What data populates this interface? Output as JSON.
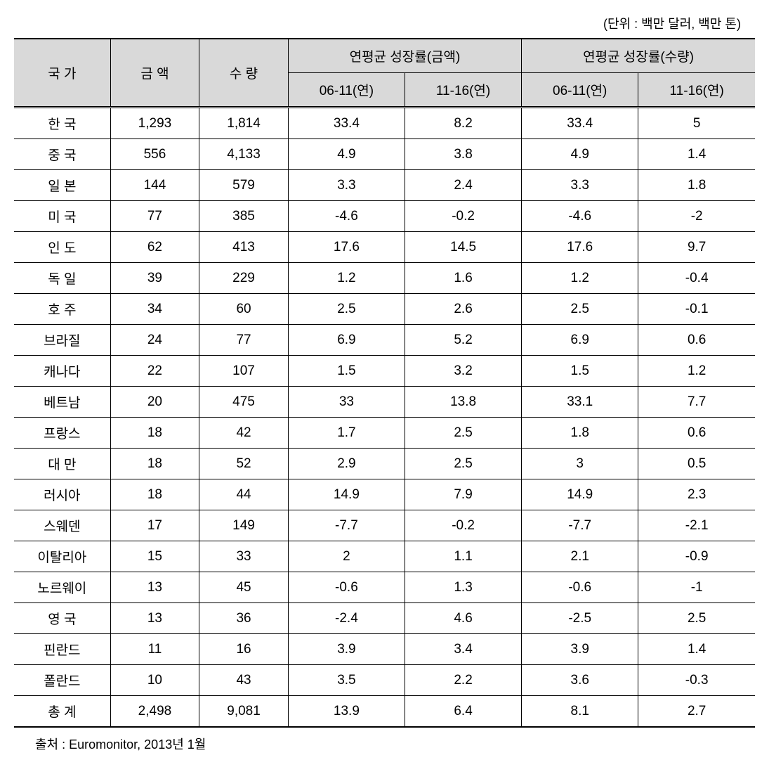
{
  "unit_label": "(단위 : 백만 달러, 백만 톤)",
  "headers": {
    "country": "국 가",
    "amount": "금 액",
    "quantity": "수 량",
    "growth_amount": "연평균 성장률(금액)",
    "growth_qty": "연평균 성장률(수량)",
    "period1": "06-11(연)",
    "period2": "11-16(연)"
  },
  "rows": [
    {
      "country": "한 국",
      "amount": "1,293",
      "qty": "1,814",
      "ga1": "33.4",
      "ga2": "8.2",
      "gq1": "33.4",
      "gq2": "5"
    },
    {
      "country": "중 국",
      "amount": "556",
      "qty": "4,133",
      "ga1": "4.9",
      "ga2": "3.8",
      "gq1": "4.9",
      "gq2": "1.4"
    },
    {
      "country": "일 본",
      "amount": "144",
      "qty": "579",
      "ga1": "3.3",
      "ga2": "2.4",
      "gq1": "3.3",
      "gq2": "1.8"
    },
    {
      "country": "미 국",
      "amount": "77",
      "qty": "385",
      "ga1": "-4.6",
      "ga2": "-0.2",
      "gq1": "-4.6",
      "gq2": "-2"
    },
    {
      "country": "인 도",
      "amount": "62",
      "qty": "413",
      "ga1": "17.6",
      "ga2": "14.5",
      "gq1": "17.6",
      "gq2": "9.7"
    },
    {
      "country": "독 일",
      "amount": "39",
      "qty": "229",
      "ga1": "1.2",
      "ga2": "1.6",
      "gq1": "1.2",
      "gq2": "-0.4"
    },
    {
      "country": "호 주",
      "amount": "34",
      "qty": "60",
      "ga1": "2.5",
      "ga2": "2.6",
      "gq1": "2.5",
      "gq2": "-0.1"
    },
    {
      "country": "브라질",
      "amount": "24",
      "qty": "77",
      "ga1": "6.9",
      "ga2": "5.2",
      "gq1": "6.9",
      "gq2": "0.6"
    },
    {
      "country": "캐나다",
      "amount": "22",
      "qty": "107",
      "ga1": "1.5",
      "ga2": "3.2",
      "gq1": "1.5",
      "gq2": "1.2"
    },
    {
      "country": "베트남",
      "amount": "20",
      "qty": "475",
      "ga1": "33",
      "ga2": "13.8",
      "gq1": "33.1",
      "gq2": "7.7"
    },
    {
      "country": "프랑스",
      "amount": "18",
      "qty": "42",
      "ga1": "1.7",
      "ga2": "2.5",
      "gq1": "1.8",
      "gq2": "0.6"
    },
    {
      "country": "대 만",
      "amount": "18",
      "qty": "52",
      "ga1": "2.9",
      "ga2": "2.5",
      "gq1": "3",
      "gq2": "0.5"
    },
    {
      "country": "러시아",
      "amount": "18",
      "qty": "44",
      "ga1": "14.9",
      "ga2": "7.9",
      "gq1": "14.9",
      "gq2": "2.3"
    },
    {
      "country": "스웨덴",
      "amount": "17",
      "qty": "149",
      "ga1": "-7.7",
      "ga2": "-0.2",
      "gq1": "-7.7",
      "gq2": "-2.1"
    },
    {
      "country": "이탈리아",
      "amount": "15",
      "qty": "33",
      "ga1": "2",
      "ga2": "1.1",
      "gq1": "2.1",
      "gq2": "-0.9"
    },
    {
      "country": "노르웨이",
      "amount": "13",
      "qty": "45",
      "ga1": "-0.6",
      "ga2": "1.3",
      "gq1": "-0.6",
      "gq2": "-1"
    },
    {
      "country": "영 국",
      "amount": "13",
      "qty": "36",
      "ga1": "-2.4",
      "ga2": "4.6",
      "gq1": "-2.5",
      "gq2": "2.5"
    },
    {
      "country": "핀란드",
      "amount": "11",
      "qty": "16",
      "ga1": "3.9",
      "ga2": "3.4",
      "gq1": "3.9",
      "gq2": "1.4"
    },
    {
      "country": "폴란드",
      "amount": "10",
      "qty": "43",
      "ga1": "3.5",
      "ga2": "2.2",
      "gq1": "3.6",
      "gq2": "-0.3"
    },
    {
      "country": "총 계",
      "amount": "2,498",
      "qty": "9,081",
      "ga1": "13.9",
      "ga2": "6.4",
      "gq1": "8.1",
      "gq2": "2.7"
    }
  ],
  "source": "출처 : Euromonitor, 2013년 1월"
}
